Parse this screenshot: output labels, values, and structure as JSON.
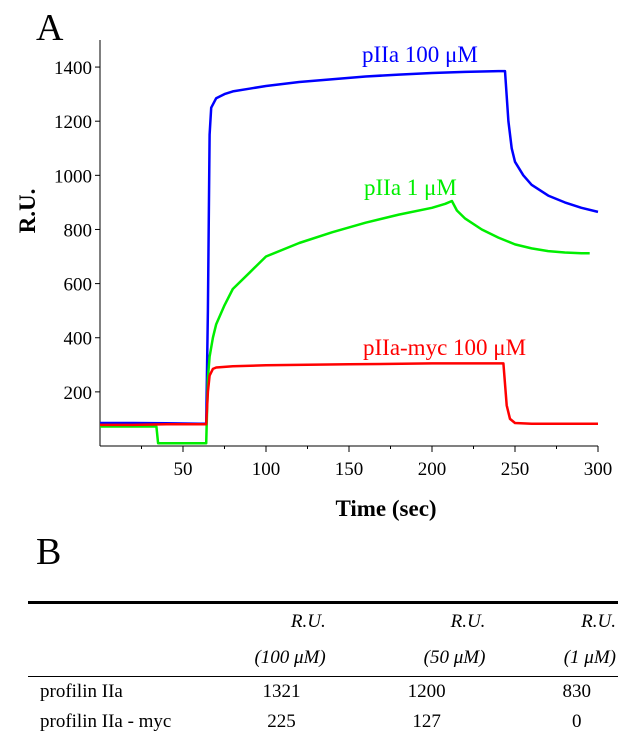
{
  "panel_a_letter": "A",
  "panel_b_letter": "B",
  "chart_data": {
    "type": "line",
    "xlabel": "Time (sec)",
    "ylabel": "R.U.",
    "xlim": [
      0,
      300
    ],
    "ylim": [
      0,
      1500
    ],
    "xticks": [
      50,
      100,
      150,
      200,
      250,
      300
    ],
    "yticks": [
      200,
      400,
      600,
      800,
      1000,
      1200,
      1400
    ],
    "grid": false,
    "series": [
      {
        "name": "pIIa 100 μM",
        "color": "#0000ff",
        "x": [
          0,
          20,
          40,
          60,
          64,
          65,
          66,
          67,
          70,
          75,
          80,
          90,
          100,
          120,
          140,
          160,
          180,
          200,
          220,
          240,
          244,
          246,
          248,
          250,
          255,
          260,
          270,
          280,
          290,
          300
        ],
        "y": [
          85,
          85,
          84,
          82,
          82,
          500,
          1150,
          1250,
          1285,
          1300,
          1310,
          1320,
          1330,
          1345,
          1355,
          1365,
          1372,
          1378,
          1382,
          1385,
          1385,
          1200,
          1100,
          1050,
          1000,
          965,
          925,
          900,
          880,
          865
        ]
      },
      {
        "name": "pIIa 1 μM",
        "color": "#00ee00",
        "x": [
          0,
          20,
          34,
          35,
          36,
          60,
          64,
          65,
          66,
          68,
          70,
          75,
          80,
          90,
          100,
          120,
          140,
          160,
          180,
          200,
          208,
          212,
          215,
          220,
          230,
          240,
          250,
          260,
          270,
          280,
          290,
          295
        ],
        "y": [
          72,
          72,
          72,
          10,
          10,
          10,
          10,
          250,
          330,
          400,
          450,
          520,
          580,
          640,
          700,
          750,
          790,
          825,
          855,
          880,
          895,
          905,
          870,
          840,
          800,
          770,
          745,
          730,
          720,
          715,
          712,
          712
        ]
      },
      {
        "name": "pIIa-myc 100 μM",
        "color": "#ff0000",
        "x": [
          0,
          20,
          40,
          60,
          64,
          65,
          66,
          68,
          70,
          80,
          100,
          150,
          200,
          240,
          243,
          245,
          247,
          250,
          260,
          280,
          300
        ],
        "y": [
          78,
          78,
          80,
          80,
          80,
          200,
          260,
          285,
          290,
          295,
          298,
          302,
          305,
          305,
          305,
          150,
          100,
          85,
          82,
          82,
          82
        ]
      }
    ]
  },
  "table": {
    "headers_line1": [
      "",
      "R.U.",
      "R.U.",
      "R.U."
    ],
    "headers_line2": [
      "",
      "(100 μM)",
      "(50 μM)",
      "(1 μM)"
    ],
    "rows": [
      [
        "profilin IIa",
        "1321",
        "1200",
        "830"
      ],
      [
        "profilin IIa - myc",
        "225",
        "127",
        "0"
      ]
    ]
  }
}
